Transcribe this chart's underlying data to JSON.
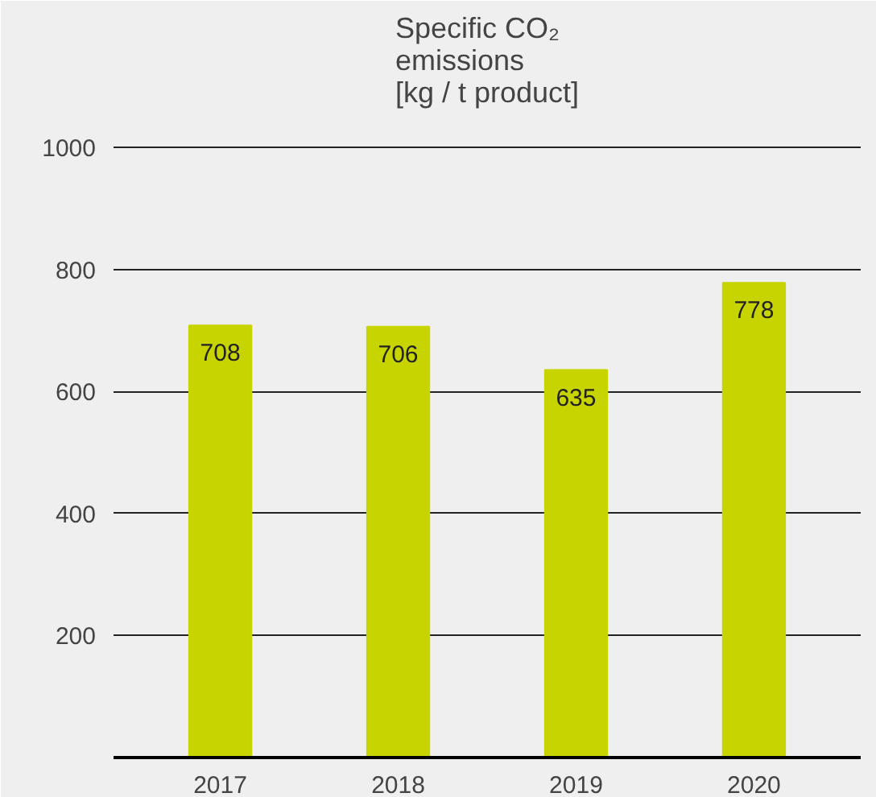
{
  "chart_data": {
    "type": "bar",
    "title": "Specific CO₂\nemissions\n[kg / t product]",
    "categories": [
      "2017",
      "2018",
      "2019",
      "2020"
    ],
    "values": [
      708,
      706,
      635,
      778
    ],
    "color": "#c8d400",
    "ylim": [
      0,
      1050
    ],
    "yticks": [
      200,
      400,
      600,
      800,
      1000
    ],
    "grid": "y",
    "data_labels": true
  }
}
